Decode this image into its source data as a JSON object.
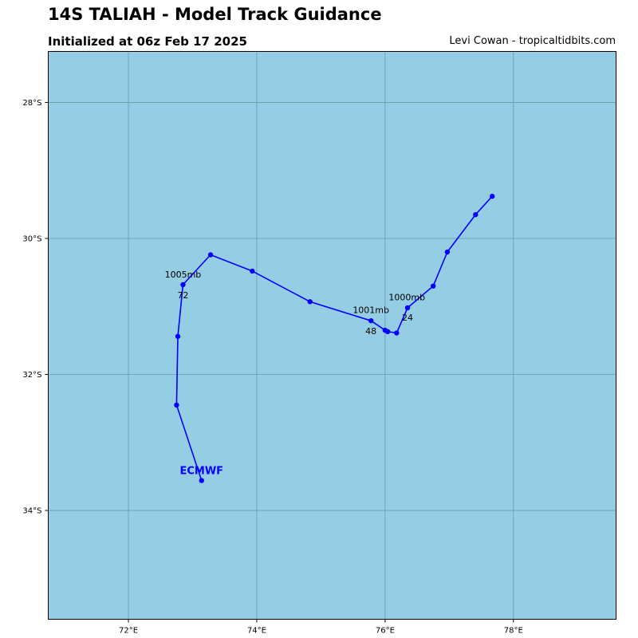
{
  "header": {
    "title": "14S TALIAH - Model Track Guidance",
    "subtitle": "Initialized at 06z Feb 17 2025",
    "credit": "Levi Cowan - tropicaltidbits.com"
  },
  "colors": {
    "ocean": "#94cde4",
    "grid": "#6b9aa6",
    "track": "#0000ff"
  },
  "map": {
    "lon_range": [
      70.75,
      79.6
    ],
    "lat_range": [
      -35.6,
      -27.25
    ],
    "lon_ticks": [
      {
        "value": 72,
        "label": "72°E"
      },
      {
        "value": 74,
        "label": "74°E"
      },
      {
        "value": 76,
        "label": "76°E"
      },
      {
        "value": 78,
        "label": "78°E"
      }
    ],
    "lat_ticks": [
      {
        "value": -28,
        "label": "28°S"
      },
      {
        "value": -30,
        "label": "30°S"
      },
      {
        "value": -32,
        "label": "32°S"
      },
      {
        "value": -34,
        "label": "34°S"
      }
    ],
    "grid": true
  },
  "tracks": [
    {
      "name": "ECMWF",
      "points": [
        {
          "lon": 77.67,
          "lat": -29.38
        },
        {
          "lon": 77.41,
          "lat": -29.65
        },
        {
          "lon": 76.97,
          "lat": -30.2
        },
        {
          "lon": 76.75,
          "lat": -30.7
        },
        {
          "lon": 76.35,
          "lat": -31.02
        },
        {
          "lon": 76.18,
          "lat": -31.39
        },
        {
          "lon": 76.04,
          "lat": -31.37
        },
        {
          "lon": 76.0,
          "lat": -31.35
        },
        {
          "lon": 75.78,
          "lat": -31.21
        },
        {
          "lon": 74.83,
          "lat": -30.93
        },
        {
          "lon": 73.93,
          "lat": -30.48
        },
        {
          "lon": 73.28,
          "lat": -30.24
        },
        {
          "lon": 72.85,
          "lat": -30.68
        },
        {
          "lon": 72.77,
          "lat": -31.44
        },
        {
          "lon": 72.75,
          "lat": -32.45
        },
        {
          "lon": 73.14,
          "lat": -33.56
        }
      ],
      "annotations": [
        {
          "text": "1000mb",
          "lon": 76.34,
          "lat": -30.86
        },
        {
          "text": "24",
          "lon": 76.35,
          "lat": -31.16
        },
        {
          "text": "1001mb",
          "lon": 75.78,
          "lat": -31.05
        },
        {
          "text": "48",
          "lon": 75.78,
          "lat": -31.36
        },
        {
          "text": "1005mb",
          "lon": 72.85,
          "lat": -30.53
        },
        {
          "text": "72",
          "lon": 72.85,
          "lat": -30.83
        }
      ],
      "label": {
        "text": "ECMWF",
        "lon": 73.14,
        "lat": -33.41
      }
    }
  ]
}
